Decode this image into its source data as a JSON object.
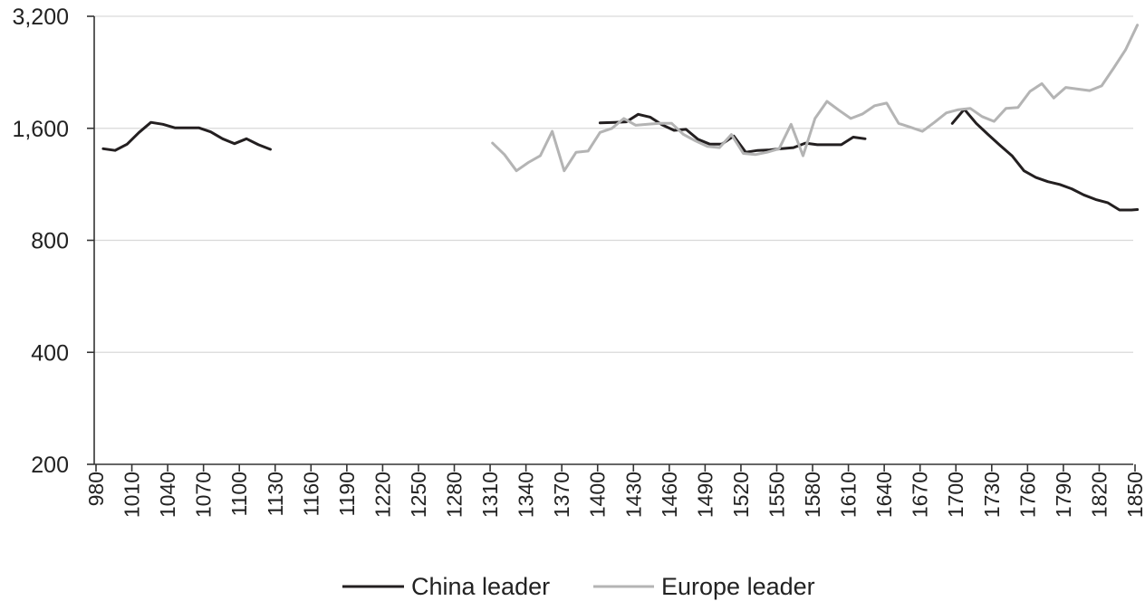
{
  "chart_data": {
    "type": "line",
    "yscale": "log2",
    "ylim": [
      200,
      3200
    ],
    "yticks": [
      200,
      400,
      800,
      1600,
      3200
    ],
    "ytick_labels": [
      "200",
      "400",
      "800",
      "1,600",
      "3,200"
    ],
    "xlim": [
      980,
      1850
    ],
    "xticks": [
      980,
      1010,
      1040,
      1070,
      1100,
      1130,
      1160,
      1190,
      1220,
      1250,
      1280,
      1310,
      1340,
      1370,
      1400,
      1430,
      1460,
      1490,
      1520,
      1550,
      1580,
      1610,
      1640,
      1670,
      1700,
      1730,
      1760,
      1790,
      1820,
      1850
    ],
    "xtick_labels": [
      "980",
      "1010",
      "1040",
      "1070",
      "1100",
      "1130",
      "1160",
      "1190",
      "1220",
      "1250",
      "1280",
      "1310",
      "1340",
      "1370",
      "1400",
      "1430",
      "1460",
      "1490",
      "1520",
      "1550",
      "1580",
      "1610",
      "1640",
      "1670",
      "1700",
      "1730",
      "1760",
      "1790",
      "1820",
      "1850"
    ],
    "grid": "horizontal",
    "legend_position": "bottom",
    "series": [
      {
        "name": "China leader",
        "color": "#231f20",
        "segments": [
          [
            [
              986,
              1410
            ],
            [
              996,
              1395
            ],
            [
              1006,
              1450
            ],
            [
              1016,
              1560
            ],
            [
              1026,
              1660
            ],
            [
              1036,
              1640
            ],
            [
              1046,
              1605
            ],
            [
              1056,
              1605
            ],
            [
              1066,
              1605
            ],
            [
              1076,
              1565
            ],
            [
              1086,
              1500
            ],
            [
              1096,
              1455
            ],
            [
              1106,
              1500
            ],
            [
              1116,
              1445
            ],
            [
              1126,
              1405
            ]
          ],
          [
            [
              1402,
              1655
            ],
            [
              1414,
              1660
            ],
            [
              1424,
              1665
            ],
            [
              1434,
              1745
            ],
            [
              1444,
              1715
            ],
            [
              1454,
              1635
            ],
            [
              1464,
              1580
            ],
            [
              1474,
              1590
            ],
            [
              1484,
              1495
            ],
            [
              1494,
              1450
            ],
            [
              1504,
              1450
            ],
            [
              1514,
              1525
            ],
            [
              1524,
              1380
            ],
            [
              1534,
              1395
            ],
            [
              1544,
              1400
            ],
            [
              1554,
              1410
            ],
            [
              1564,
              1420
            ],
            [
              1574,
              1460
            ],
            [
              1584,
              1445
            ],
            [
              1594,
              1445
            ],
            [
              1604,
              1445
            ],
            [
              1614,
              1515
            ],
            [
              1624,
              1500
            ]
          ],
          [
            [
              1697,
              1650
            ],
            [
              1707,
              1800
            ],
            [
              1717,
              1650
            ],
            [
              1727,
              1540
            ],
            [
              1737,
              1440
            ],
            [
              1747,
              1350
            ],
            [
              1757,
              1230
            ],
            [
              1767,
              1180
            ],
            [
              1777,
              1150
            ],
            [
              1787,
              1130
            ],
            [
              1797,
              1100
            ],
            [
              1807,
              1060
            ],
            [
              1817,
              1030
            ],
            [
              1827,
              1010
            ],
            [
              1837,
              965
            ],
            [
              1847,
              965
            ],
            [
              1852,
              968
            ]
          ]
        ]
      },
      {
        "name": "Europe leader",
        "color": "#b4b4b4",
        "segments": [
          [
            [
              1312,
              1460
            ],
            [
              1322,
              1360
            ],
            [
              1332,
              1230
            ],
            [
              1342,
              1295
            ],
            [
              1352,
              1350
            ],
            [
              1362,
              1570
            ],
            [
              1372,
              1230
            ],
            [
              1382,
              1380
            ],
            [
              1392,
              1390
            ],
            [
              1402,
              1560
            ],
            [
              1412,
              1600
            ],
            [
              1422,
              1700
            ],
            [
              1432,
              1630
            ],
            [
              1442,
              1640
            ],
            [
              1452,
              1650
            ],
            [
              1462,
              1650
            ],
            [
              1472,
              1540
            ],
            [
              1482,
              1480
            ],
            [
              1492,
              1430
            ],
            [
              1502,
              1420
            ],
            [
              1512,
              1540
            ],
            [
              1522,
              1370
            ],
            [
              1532,
              1360
            ],
            [
              1542,
              1380
            ],
            [
              1552,
              1410
            ],
            [
              1562,
              1640
            ],
            [
              1572,
              1350
            ],
            [
              1582,
              1700
            ],
            [
              1592,
              1890
            ],
            [
              1602,
              1790
            ],
            [
              1612,
              1700
            ],
            [
              1622,
              1750
            ],
            [
              1632,
              1840
            ],
            [
              1642,
              1870
            ],
            [
              1652,
              1650
            ],
            [
              1662,
              1610
            ],
            [
              1672,
              1570
            ],
            [
              1682,
              1660
            ],
            [
              1692,
              1760
            ],
            [
              1702,
              1795
            ],
            [
              1712,
              1810
            ],
            [
              1722,
              1720
            ],
            [
              1732,
              1670
            ],
            [
              1742,
              1810
            ],
            [
              1752,
              1820
            ],
            [
              1762,
              2010
            ],
            [
              1772,
              2110
            ],
            [
              1782,
              1930
            ],
            [
              1792,
              2060
            ],
            [
              1802,
              2040
            ],
            [
              1812,
              2020
            ],
            [
              1822,
              2080
            ],
            [
              1832,
              2320
            ],
            [
              1842,
              2600
            ],
            [
              1852,
              3030
            ]
          ]
        ]
      }
    ]
  }
}
